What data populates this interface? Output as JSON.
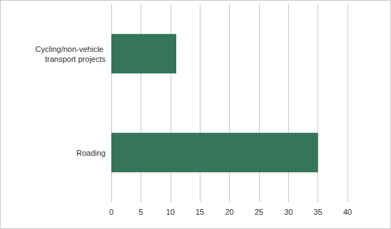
{
  "chart_data": {
    "type": "bar",
    "orientation": "horizontal",
    "categories": [
      "Cycling/non-vehicle transport projects",
      "Roading"
    ],
    "values": [
      11,
      35
    ],
    "color": "#357559",
    "xlim": [
      0,
      40
    ],
    "xticks": [
      0,
      5,
      10,
      15,
      20,
      25,
      30,
      35,
      40
    ],
    "grid": true
  }
}
